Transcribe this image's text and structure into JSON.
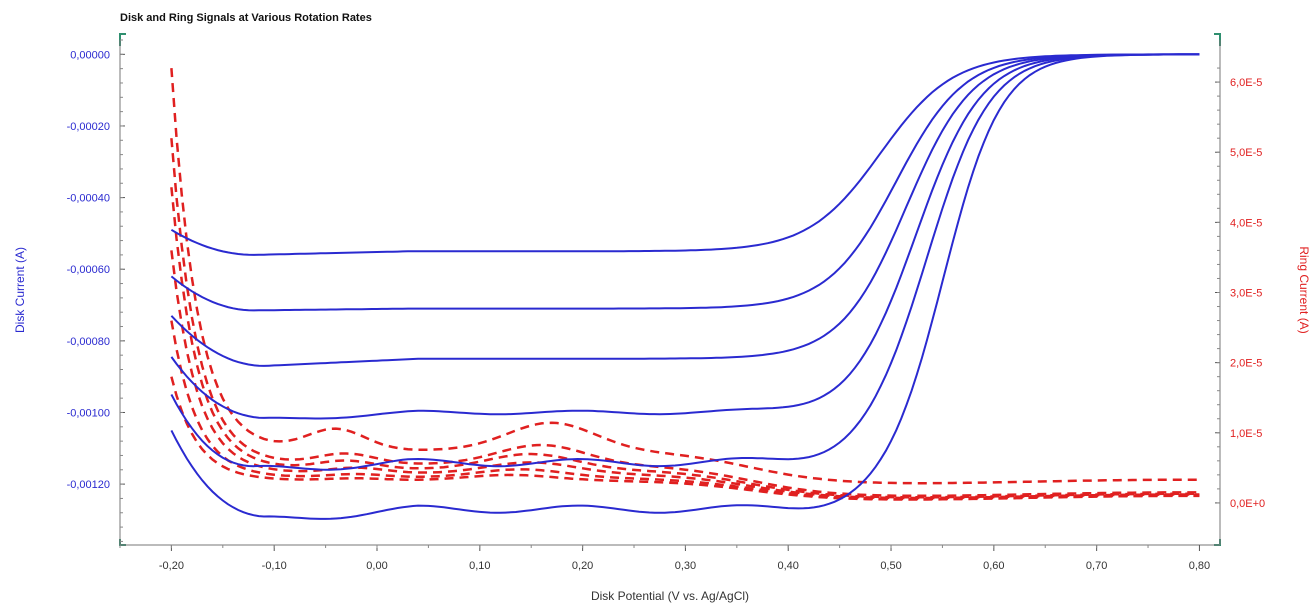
{
  "chart_data": {
    "type": "line",
    "title": "Disk and Ring Signals at Various Rotation Rates",
    "xlabel": "Disk Potential (V vs. Ag/AgCl)",
    "ylabel_left": "Disk Current (A)",
    "ylabel_right": "Ring Current (A)",
    "x_ticks": [
      "-0,20",
      "-0,10",
      "0,00",
      "0,10",
      "0,20",
      "0,30",
      "0,40",
      "0,50",
      "0,60",
      "0,70",
      "0,80"
    ],
    "x_tick_values": [
      -0.2,
      -0.1,
      0.0,
      0.1,
      0.2,
      0.3,
      0.4,
      0.5,
      0.6,
      0.7,
      0.8
    ],
    "y_left_ticks": [
      "0,00000",
      "-0,00020",
      "-0,00040",
      "-0,00060",
      "-0,00080",
      "-0,00100",
      "-0,00120"
    ],
    "y_left_tick_values": [
      0.0,
      -0.0002,
      -0.0004,
      -0.0006,
      -0.0008,
      -0.001,
      -0.0012
    ],
    "y_right_ticks": [
      "6,0E-5",
      "5,0E-5",
      "4,0E-5",
      "3,0E-5",
      "2,0E-5",
      "1,0E-5",
      "0,0E+0"
    ],
    "y_right_tick_values": [
      6e-05,
      5e-05,
      4e-05,
      3e-05,
      2e-05,
      1e-05,
      0
    ],
    "xlim": [
      -0.25,
      0.82
    ],
    "ylim_left": [
      -0.00137,
      4e-05
    ],
    "ylim_right": [
      -6e-06,
      6.6e-05
    ],
    "grid": false,
    "colors": {
      "disk": "#2a2ad0",
      "ring": "#e02020",
      "frame": "#2f8f6f"
    },
    "disk_series": [
      {
        "plateau": -0.00055,
        "e_half": 0.49,
        "width": 0.035,
        "start": -0.00049,
        "dip": -0.00056,
        "dip_x": -0.12,
        "wobble": 0
      },
      {
        "plateau": -0.00071,
        "e_half": 0.505,
        "width": 0.033,
        "start": -0.00062,
        "dip": -0.000715,
        "dip_x": -0.12,
        "wobble": 0
      },
      {
        "plateau": -0.00085,
        "e_half": 0.515,
        "width": 0.032,
        "start": -0.00073,
        "dip": -0.00087,
        "dip_x": -0.11,
        "wobble": 0
      },
      {
        "plateau": -0.001,
        "e_half": 0.525,
        "width": 0.031,
        "start": -0.00084,
        "dip": -0.00102,
        "dip_x": -0.11,
        "wobble": 5e-06
      },
      {
        "plateau": -0.00114,
        "e_half": 0.535,
        "width": 0.03,
        "start": -0.00094,
        "dip": -0.00116,
        "dip_x": -0.12,
        "wobble": 1e-05
      },
      {
        "plateau": -0.00127,
        "e_half": 0.55,
        "width": 0.028,
        "start": -0.00104,
        "dip": -0.0013,
        "dip_x": -0.11,
        "wobble": 1e-05
      }
    ],
    "ring_series": [
      {
        "start": 6.2e-05,
        "floor": 7.5e-06,
        "bump1": 3e-06,
        "bump1_x": -0.04,
        "bump2": 4e-06,
        "bump2_x": 0.17,
        "tail": 3e-06
      },
      {
        "start": 5.2e-05,
        "floor": 5.5e-06,
        "bump1": 1.5e-06,
        "bump1_x": -0.03,
        "bump2": 2.8e-06,
        "bump2_x": 0.16,
        "tail": 1.2e-06
      },
      {
        "start": 4.5e-05,
        "floor": 4.8e-06,
        "bump1": 1.2e-06,
        "bump1_x": -0.03,
        "bump2": 2.2e-06,
        "bump2_x": 0.15,
        "tail": 1e-06
      },
      {
        "start": 3.6e-05,
        "floor": 4.2e-06,
        "bump1": 8e-07,
        "bump1_x": -0.02,
        "bump2": 1.6e-06,
        "bump2_x": 0.15,
        "tail": 9e-07
      },
      {
        "start": 2.6e-05,
        "floor": 3.6e-06,
        "bump1": 5e-07,
        "bump1_x": -0.02,
        "bump2": 1.2e-06,
        "bump2_x": 0.14,
        "tail": 8e-07
      },
      {
        "start": 1.8e-05,
        "floor": 3.2e-06,
        "bump1": 3e-07,
        "bump1_x": -0.02,
        "bump2": 8e-07,
        "bump2_x": 0.13,
        "tail": 7e-07
      }
    ]
  }
}
